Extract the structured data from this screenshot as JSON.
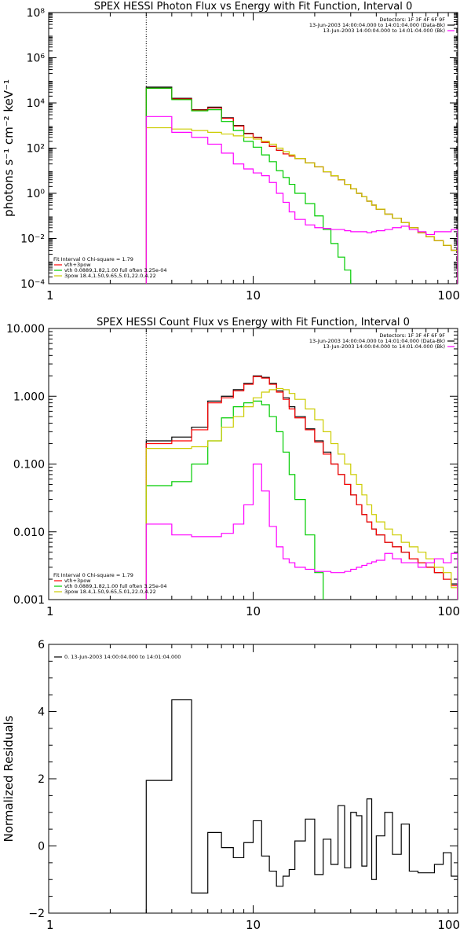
{
  "chart_data": [
    {
      "type": "line",
      "title": "SPEX HESSI Photon Flux vs Energy with Fit Function, Interval 0",
      "ylabel": "photons s⁻¹ cm⁻² keV⁻¹",
      "xlabel": "",
      "xscale": "log",
      "yscale": "log",
      "xlim": [
        1,
        100
      ],
      "ylim": [
        0.0001,
        100000000
      ],
      "xticks": [
        1,
        10,
        100
      ],
      "xtick_labels": [
        "1",
        "10",
        "100"
      ],
      "yticks": [
        0.0001,
        0.01,
        1,
        100,
        10000,
        1000000,
        100000000
      ],
      "ytick_labels": [
        "10⁻⁴",
        "10⁻²",
        "10⁰",
        "10²",
        "10⁴",
        "10⁶",
        "10⁸"
      ],
      "vlines": [
        {
          "x": 3,
          "style": "dotted"
        },
        {
          "x": 99,
          "style": "dashed"
        }
      ],
      "info_lines": [
        {
          "text": "Detectors: 1F 3F 4F 6F 9F",
          "color": ""
        },
        {
          "text": "13-Jun-2003 14:00:04.000 to 14:01:04.000 (Data-Bk)",
          "color": "#000000"
        },
        {
          "text": "13-Jun-2003 14:00:04.000 to 14:01:04.000 (Bk)",
          "color": "#ff00ff"
        }
      ],
      "legend_lines": [
        {
          "text": "Fit Interval 0   Chi-square = 1.79",
          "color": ""
        },
        {
          "text": "vth+3pow",
          "color": "#ff0000"
        },
        {
          "text": "vth 0.0889,1.82,1.00  full often 3.25e-04",
          "color": "#00cc00"
        },
        {
          "text": "3pow 18.4,1.50,9.65,5.01,22.0,4.22",
          "color": "#cccc00"
        }
      ],
      "series": [
        {
          "color": "#000000",
          "edges": [
            3,
            4,
            5,
            6,
            7,
            8,
            9,
            10,
            11,
            12,
            13,
            14,
            15,
            16,
            18,
            20,
            22,
            24,
            26,
            28,
            30,
            32,
            34,
            36,
            38,
            40,
            44,
            48,
            53,
            58,
            64,
            70,
            77,
            85,
            93,
            100
          ],
          "values": [
            50000,
            16000,
            5000,
            6500,
            2200,
            1000,
            450,
            300,
            180,
            120,
            80,
            55,
            45,
            35,
            22,
            15,
            9,
            6,
            4,
            2.5,
            1.6,
            1,
            0.7,
            0.45,
            0.3,
            0.2,
            0.12,
            0.08,
            0.05,
            0.03,
            0.018,
            0.012,
            0.008,
            0.005,
            0.003
          ]
        },
        {
          "color": "#ff0000",
          "edges": [
            3,
            4,
            5,
            6,
            7,
            8,
            9,
            10,
            11,
            12,
            13,
            14,
            15,
            16,
            18,
            20,
            22,
            24,
            26,
            28,
            30,
            32,
            34,
            36,
            38,
            40,
            44,
            48,
            53,
            58,
            64,
            70,
            77,
            85,
            93,
            100
          ],
          "values": [
            45000,
            15000,
            4800,
            6000,
            2100,
            950,
            430,
            290,
            180,
            120,
            80,
            55,
            45,
            35,
            22,
            15,
            9,
            6,
            4,
            2.5,
            1.6,
            1,
            0.7,
            0.45,
            0.3,
            0.2,
            0.12,
            0.08,
            0.05,
            0.03,
            0.018,
            0.012,
            0.008,
            0.005,
            0.003
          ]
        },
        {
          "color": "#00cc00",
          "edges": [
            3,
            4,
            5,
            6,
            7,
            8,
            9,
            10,
            11,
            12,
            13,
            14,
            15,
            16,
            18,
            20,
            22,
            24,
            26,
            28,
            30
          ],
          "values": [
            45000,
            14000,
            4500,
            5000,
            1500,
            600,
            200,
            110,
            50,
            25,
            10,
            5,
            2.5,
            1,
            0.35,
            0.1,
            0.025,
            0.006,
            0.0015,
            0.0004
          ]
        },
        {
          "color": "#cccc00",
          "edges": [
            3,
            4,
            5,
            6,
            7,
            8,
            9,
            10,
            11,
            12,
            13,
            14,
            15,
            16,
            18,
            20,
            22,
            24,
            26,
            28,
            30,
            32,
            34,
            36,
            38,
            40,
            44,
            48,
            53,
            58,
            64,
            70,
            77,
            85,
            93,
            100
          ],
          "values": [
            800,
            700,
            600,
            500,
            420,
            350,
            300,
            250,
            200,
            150,
            100,
            70,
            50,
            35,
            22,
            15,
            9,
            6,
            4,
            2.5,
            1.6,
            1,
            0.7,
            0.45,
            0.3,
            0.2,
            0.12,
            0.08,
            0.05,
            0.03,
            0.018,
            0.012,
            0.008,
            0.005,
            0.003
          ]
        },
        {
          "color": "#ff00ff",
          "edges": [
            3,
            4,
            5,
            6,
            7,
            8,
            9,
            10,
            11,
            12,
            13,
            14,
            15,
            16,
            18,
            20,
            22,
            24,
            26,
            28,
            30,
            32,
            34,
            36,
            38,
            40,
            44,
            48,
            53,
            58,
            64,
            70,
            77,
            85,
            93,
            100
          ],
          "values": [
            2500,
            500,
            300,
            150,
            60,
            20,
            12,
            8,
            6,
            3,
            1,
            0.4,
            0.15,
            0.07,
            0.04,
            0.03,
            0.028,
            0.025,
            0.025,
            0.022,
            0.02,
            0.02,
            0.02,
            0.018,
            0.02,
            0.022,
            0.025,
            0.03,
            0.035,
            0.025,
            0.02,
            0.015,
            0.02,
            0.02,
            0.025
          ]
        }
      ]
    },
    {
      "type": "line",
      "title": "SPEX HESSI Count Flux vs Energy with Fit Function, Interval 0",
      "ylabel": "",
      "xlabel": "",
      "xscale": "log",
      "yscale": "log",
      "xlim": [
        1,
        100
      ],
      "ylim": [
        0.001,
        10
      ],
      "xticks": [
        1,
        10,
        100
      ],
      "xtick_labels": [
        "1",
        "10",
        "100"
      ],
      "yticks": [
        0.001,
        0.01,
        0.1,
        1,
        10
      ],
      "ytick_labels": [
        "0.001",
        "0.010",
        "0.100",
        "1.000",
        "10.000"
      ],
      "vlines": [
        {
          "x": 3,
          "style": "dotted"
        }
      ],
      "info_lines": [
        {
          "text": "Detectors: 1F 3F 4F 6F 9F",
          "color": ""
        },
        {
          "text": "13-Jun-2003 14:00:04.000 to 14:01:04.000 (Data-Bk)",
          "color": "#000000"
        },
        {
          "text": "13-Jun-2003 14:00:04.000 to 14:01:04.000 (Bk)",
          "color": "#ff00ff"
        }
      ],
      "legend_lines": [
        {
          "text": "Fit Interval 0   Chi-square = 1.79",
          "color": ""
        },
        {
          "text": "vth+3pow",
          "color": "#ff0000"
        },
        {
          "text": "vth 0.0889,1.82,1.00  full often 3.25e-04",
          "color": "#00cc00"
        },
        {
          "text": "3pow 18.4,1.50,9.65,5.01,22.0,4.22",
          "color": "#cccc00"
        }
      ],
      "series": [
        {
          "color": "#000000",
          "edges": [
            3,
            4,
            5,
            6,
            7,
            8,
            9,
            10,
            11,
            12,
            13,
            14,
            15,
            16,
            18,
            20,
            22,
            24,
            26,
            28,
            30,
            32,
            34,
            36,
            38,
            40,
            44,
            48,
            53,
            58,
            64,
            70,
            77,
            85,
            93,
            100
          ],
          "values": [
            0.22,
            0.25,
            0.35,
            0.85,
            1.0,
            1.25,
            1.55,
            2.0,
            1.9,
            1.55,
            1.2,
            0.95,
            0.7,
            0.5,
            0.33,
            0.22,
            0.15,
            0.1,
            0.07,
            0.05,
            0.035,
            0.025,
            0.018,
            0.014,
            0.011,
            0.009,
            0.007,
            0.006,
            0.005,
            0.004,
            0.0035,
            0.003,
            0.0025,
            0.002,
            0.0017
          ]
        },
        {
          "color": "#ff0000",
          "edges": [
            3,
            4,
            5,
            6,
            7,
            8,
            9,
            10,
            11,
            12,
            13,
            14,
            15,
            16,
            18,
            20,
            22,
            24,
            26,
            28,
            30,
            32,
            34,
            36,
            38,
            40,
            44,
            48,
            53,
            58,
            64,
            70,
            77,
            85,
            93,
            100
          ],
          "values": [
            0.2,
            0.22,
            0.32,
            0.8,
            0.95,
            1.2,
            1.5,
            1.95,
            1.85,
            1.5,
            1.15,
            0.9,
            0.65,
            0.48,
            0.32,
            0.21,
            0.14,
            0.1,
            0.07,
            0.05,
            0.035,
            0.025,
            0.018,
            0.014,
            0.011,
            0.009,
            0.007,
            0.006,
            0.005,
            0.004,
            0.0035,
            0.003,
            0.0025,
            0.002,
            0.0016
          ]
        },
        {
          "color": "#00cc00",
          "edges": [
            3,
            4,
            5,
            6,
            7,
            8,
            9,
            10,
            11,
            12,
            13,
            14,
            15,
            16,
            18,
            20,
            22,
            24
          ],
          "values": [
            0.048,
            0.055,
            0.1,
            0.22,
            0.48,
            0.7,
            0.8,
            0.85,
            0.75,
            0.5,
            0.3,
            0.15,
            0.07,
            0.03,
            0.009,
            0.0025,
            0.0007
          ]
        },
        {
          "color": "#cccc00",
          "edges": [
            3,
            4,
            5,
            6,
            7,
            8,
            9,
            10,
            11,
            12,
            13,
            14,
            15,
            16,
            18,
            20,
            22,
            24,
            26,
            28,
            30,
            32,
            34,
            36,
            38,
            40,
            44,
            48,
            53,
            58,
            64,
            70,
            77,
            85,
            93,
            100
          ],
          "values": [
            0.17,
            0.17,
            0.18,
            0.22,
            0.35,
            0.5,
            0.7,
            0.95,
            1.15,
            1.25,
            1.3,
            1.25,
            1.1,
            0.9,
            0.65,
            0.45,
            0.3,
            0.2,
            0.14,
            0.1,
            0.07,
            0.05,
            0.035,
            0.025,
            0.018,
            0.014,
            0.011,
            0.009,
            0.007,
            0.006,
            0.005,
            0.004,
            0.003,
            0.0025,
            0.0015
          ]
        },
        {
          "color": "#ff00ff",
          "edges": [
            3,
            4,
            5,
            6,
            7,
            8,
            9,
            10,
            11,
            12,
            13,
            14,
            15,
            16,
            18,
            20,
            22,
            24,
            26,
            28,
            30,
            32,
            34,
            36,
            38,
            40,
            44,
            48,
            53,
            58,
            64,
            70,
            77,
            85,
            93,
            100
          ],
          "values": [
            0.013,
            0.009,
            0.0085,
            0.0085,
            0.0095,
            0.013,
            0.025,
            0.1,
            0.04,
            0.012,
            0.006,
            0.004,
            0.0035,
            0.003,
            0.0028,
            0.0026,
            0.0026,
            0.0025,
            0.0025,
            0.0026,
            0.0028,
            0.003,
            0.0032,
            0.0034,
            0.0036,
            0.0038,
            0.0048,
            0.004,
            0.0035,
            0.0035,
            0.003,
            0.0035,
            0.004,
            0.0035,
            0.0048
          ]
        }
      ]
    },
    {
      "type": "line",
      "title": "",
      "ylabel": "Normalized Residuals",
      "xlabel": "",
      "xscale": "log",
      "yscale": "linear",
      "xlim": [
        1,
        100
      ],
      "ylim": [
        -2,
        6
      ],
      "xticks": [
        1,
        10,
        100
      ],
      "xtick_labels": [
        "1",
        "10",
        "100"
      ],
      "yticks": [
        -2,
        0,
        2,
        4,
        6
      ],
      "ytick_labels": [
        "−2",
        "0",
        "2",
        "4",
        "6"
      ],
      "vlines": [],
      "info_lines": [],
      "legend_lines": [
        {
          "text": "0. 13-Jun-2003 14:00:04.000 to 14:01:04.000",
          "color": "#000000"
        }
      ],
      "series": [
        {
          "color": "#000000",
          "edges": [
            3,
            4,
            5,
            6,
            7,
            8,
            9,
            10,
            11,
            12,
            13,
            14,
            15,
            16,
            18,
            20,
            22,
            24,
            26,
            28,
            30,
            32,
            34,
            36,
            38,
            40,
            44,
            48,
            53,
            58,
            64,
            70,
            77,
            85,
            93,
            100
          ],
          "values": [
            1.95,
            4.35,
            -1.4,
            0.4,
            -0.05,
            -0.35,
            0.1,
            0.75,
            -0.3,
            -0.75,
            -1.2,
            -0.9,
            -0.7,
            0.15,
            0.8,
            -0.85,
            0.2,
            -0.55,
            1.2,
            -0.65,
            1.0,
            0.9,
            -0.6,
            1.4,
            -1.0,
            0.3,
            1.0,
            -0.25,
            0.65,
            -0.75,
            -0.8,
            -0.8,
            -0.55,
            -0.2,
            -0.9
          ]
        }
      ]
    }
  ]
}
